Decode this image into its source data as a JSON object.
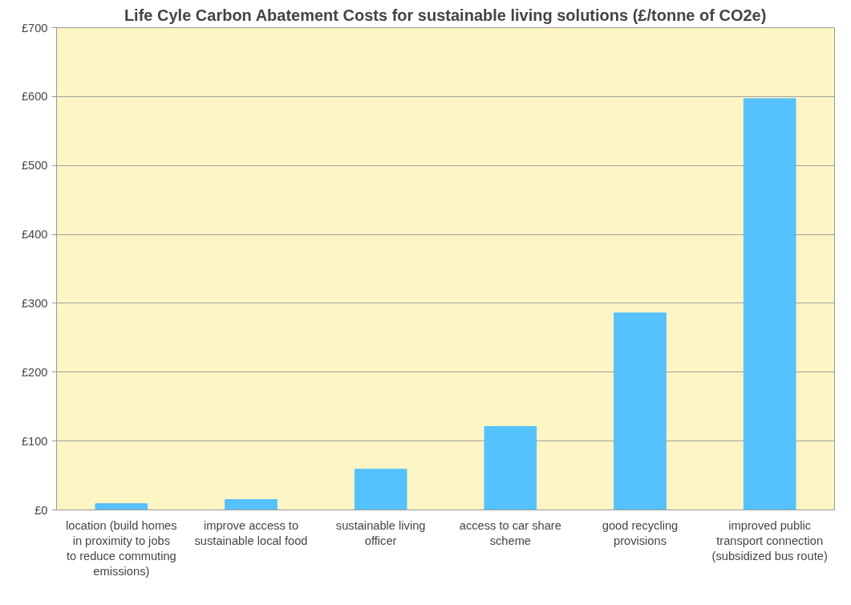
{
  "chart_data": {
    "type": "bar",
    "title": "Life Cyle Carbon Abatement Costs for sustainable living solutions (£/tonne of CO2e)",
    "categories": [
      "location (build homes in proximity to jobs to reduce commuting emissions)",
      "improve access to sustainable local food",
      "sustainable living officer",
      "access to car share scheme",
      "good recycling provisions",
      "improved public transport connection (subsidized bus route)"
    ],
    "values": [
      9,
      15,
      59,
      121,
      286,
      597
    ],
    "color": "#55c1fd",
    "ylim": [
      0,
      700
    ],
    "yticks": [
      {
        "value": 0,
        "label": "£0"
      },
      {
        "value": 100,
        "label": "£100"
      },
      {
        "value": 200,
        "label": "£200"
      },
      {
        "value": 300,
        "label": "£300"
      },
      {
        "value": 400,
        "label": "£400"
      },
      {
        "value": 500,
        "label": "£500"
      },
      {
        "value": 600,
        "label": "£600"
      },
      {
        "value": 700,
        "label": "£700"
      }
    ],
    "grid": "y"
  }
}
